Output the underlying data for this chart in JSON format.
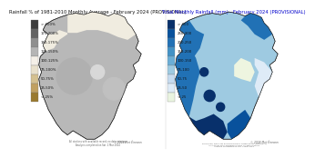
{
  "left_title": "Rainfall % of 1981-2010 Monthly Average - February 2024 (PROVISIONAL)",
  "right_title": "Total Monthly Rainfall (mm) - February 2024 (PROVISIONAL)",
  "left_legend_labels": [
    "> 200%",
    "175-200%",
    "150-175%",
    "125-150%",
    "100-125%",
    "75-100%",
    "50-75%",
    "25-50%",
    "< 25%"
  ],
  "left_legend_colors": [
    "#3d3d3d",
    "#636363",
    "#8f8f8f",
    "#b5b5b5",
    "#f5f0e8",
    "#e8e0cc",
    "#d4c090",
    "#c0a060",
    "#9a7a30"
  ],
  "right_legend_labels": [
    "> 300",
    "250-300",
    "200-250",
    "150-200",
    "100-150",
    "75-100",
    "50-75",
    "25-50",
    "< 25"
  ],
  "right_legend_colors": [
    "#08306b",
    "#08519c",
    "#2171b5",
    "#4292c6",
    "#6baed6",
    "#9ecae1",
    "#c6dbef",
    "#deebf7",
    "#eaf4e0"
  ],
  "background_color": "#ffffff",
  "footer_text": "© 2024 Met Éireann",
  "title_fontsize": 3.8,
  "legend_fontsize": 2.8
}
